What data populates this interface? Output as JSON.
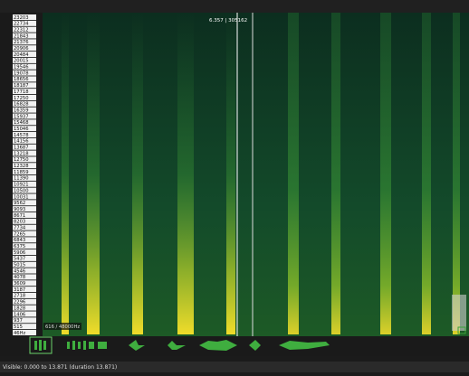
{
  "frequency_axis": {
    "labels": [
      "23203",
      "22734",
      "22312",
      "21843",
      "21376",
      "20906",
      "20484",
      "20015",
      "19546",
      "19078",
      "18656",
      "18187",
      "17718",
      "17250",
      "16828",
      "16359",
      "15937",
      "15468",
      "15046",
      "14578",
      "14156",
      "13687",
      "13218",
      "12750",
      "12328",
      "11859",
      "11390",
      "10921",
      "10500",
      "10031",
      "9562",
      "9093",
      "8671",
      "8203",
      "7734",
      "7265",
      "6843",
      "6375",
      "5906",
      "5437",
      "5015",
      "4546",
      "4078",
      "3609",
      "3187",
      "2718",
      "2296",
      "1828",
      "1406",
      "937",
      "515",
      "46Hz"
    ]
  },
  "cursor": {
    "label": "6.357 | 305162"
  },
  "spectrogram": {
    "scale_label": "616 / 48000Hz"
  },
  "status_bar": {
    "text": "Visible: 0.000 to 13.871 (duration 13.871)"
  }
}
